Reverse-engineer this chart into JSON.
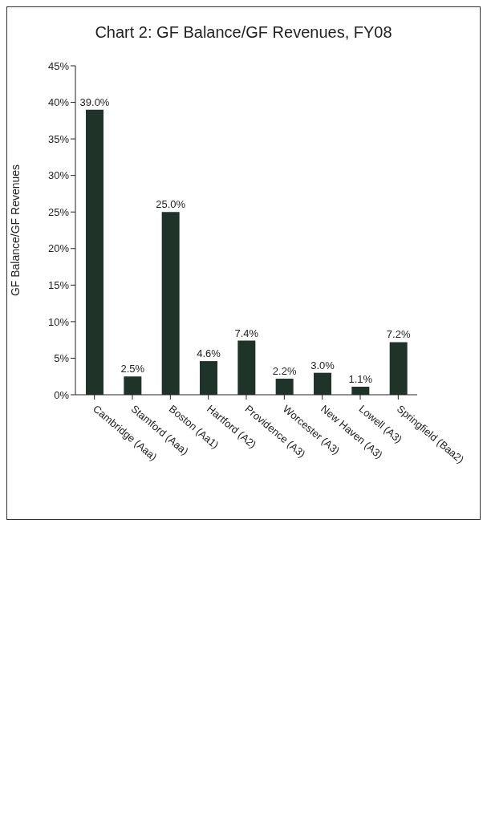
{
  "chart_data": {
    "type": "bar",
    "title": "Chart 2: GF Balance/GF Revenues, FY08",
    "ylabel": "GF Balance/GF Revenues",
    "categories": [
      "Cambridge (Aaa)",
      "Stamford (Aaa)",
      "Boston (Aa1)",
      "Hartford (A2)",
      "Providence (A3)",
      "Worcester (A3)",
      "New Haven (A3)",
      "Lowell (A3)",
      "Springfield (Baa2)"
    ],
    "values": [
      39.0,
      2.5,
      25.0,
      4.6,
      7.4,
      2.2,
      3.0,
      1.1,
      7.2
    ],
    "value_labels": [
      "39.0%",
      "2.5%",
      "25.0%",
      "4.6%",
      "7.4%",
      "2.2%",
      "3.0%",
      "1.1%",
      "7.2%"
    ],
    "color": "#1f3328",
    "ylim": [
      0,
      45
    ],
    "yticks": [
      {
        "value": 0,
        "label": "0%"
      },
      {
        "value": 5,
        "label": "5%"
      },
      {
        "value": 10,
        "label": "10%"
      },
      {
        "value": 15,
        "label": "15%"
      },
      {
        "value": 20,
        "label": "20%"
      },
      {
        "value": 25,
        "label": "25%"
      },
      {
        "value": 30,
        "label": "30%"
      },
      {
        "value": 35,
        "label": "35%"
      },
      {
        "value": 40,
        "label": "40%"
      },
      {
        "value": 45,
        "label": "45%"
      }
    ],
    "grid": false,
    "legend": false
  }
}
